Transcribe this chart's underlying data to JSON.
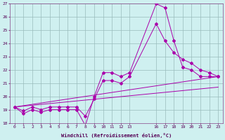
{
  "background_color": "#cff0f0",
  "line_color": "#aa00aa",
  "grid_color": "#99bbbb",
  "xlim": [
    -0.5,
    23.5
  ],
  "ylim": [
    18,
    27
  ],
  "xtick_positions": [
    0,
    1,
    2,
    3,
    4,
    5,
    6,
    7,
    8,
    9,
    10,
    11,
    12,
    13,
    16,
    17,
    18,
    19,
    20,
    21,
    22,
    23
  ],
  "xtick_labels": [
    "0",
    "1",
    "2",
    "3",
    "4",
    "5",
    "6",
    "7",
    "8",
    "9",
    "10",
    "11",
    "12",
    "13",
    "16",
    "17",
    "18",
    "19",
    "20",
    "21",
    "22",
    "23"
  ],
  "yticks": [
    18,
    19,
    20,
    21,
    22,
    23,
    24,
    25,
    26,
    27
  ],
  "xlabel": "Windchill (Refroidissement éolien,°C)",
  "lines": [
    {
      "x": [
        0,
        1,
        2,
        3,
        4,
        5,
        6,
        7,
        8,
        9,
        10,
        11,
        12,
        13,
        16,
        17,
        18,
        19,
        20,
        21,
        22,
        23
      ],
      "y": [
        19.2,
        18.7,
        19.0,
        18.8,
        19.0,
        19.0,
        19.0,
        19.0,
        17.8,
        20.0,
        21.8,
        21.8,
        21.5,
        21.8,
        27.0,
        26.7,
        24.2,
        22.2,
        22.0,
        21.5,
        21.5,
        21.5
      ],
      "marker": true
    },
    {
      "x": [
        0,
        1,
        2,
        3,
        4,
        5,
        6,
        7,
        8,
        9,
        10,
        11,
        12,
        13,
        16,
        17,
        18,
        19,
        20,
        21,
        22,
        23
      ],
      "y": [
        19.2,
        18.9,
        19.2,
        19.0,
        19.2,
        19.2,
        19.2,
        19.2,
        18.5,
        19.8,
        21.2,
        21.2,
        21.0,
        21.5,
        25.5,
        24.2,
        23.3,
        22.8,
        22.5,
        22.0,
        21.8,
        21.5
      ],
      "marker": true
    },
    {
      "x": [
        0,
        23
      ],
      "y": [
        19.2,
        21.5
      ],
      "marker": false
    },
    {
      "x": [
        0,
        23
      ],
      "y": [
        19.2,
        20.7
      ],
      "marker": false
    }
  ]
}
